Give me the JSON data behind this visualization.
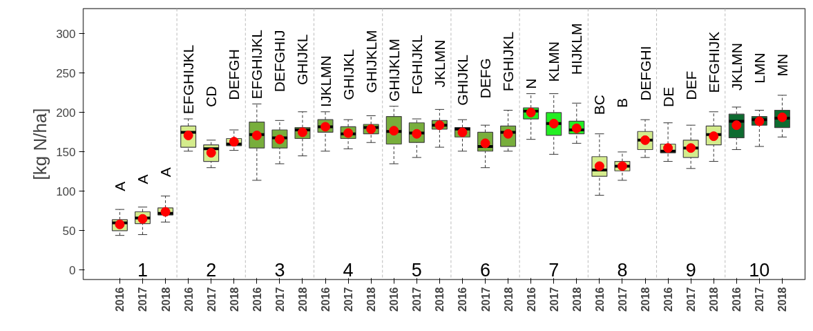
{
  "chart_data": {
    "type": "box",
    "ylabel": "[kg N/ha]",
    "categories": [
      "2016",
      "2017",
      "2018",
      "2016",
      "2017",
      "2018",
      "2016",
      "2017",
      "2018",
      "2016",
      "2017",
      "2018",
      "2016",
      "2017",
      "2018",
      "2016",
      "2017",
      "2018",
      "2016",
      "2017",
      "2018",
      "2016",
      "2017",
      "2018",
      "2016",
      "2017",
      "2018",
      "2016",
      "2017",
      "2018"
    ],
    "colors": [
      "#d4ec8c",
      "#d4ec8c",
      "#d4ec8c",
      "#d4ec8c",
      "#d4ec8c",
      "#d4ec8c",
      "#78ae3c",
      "#78ae3c",
      "#78ae3c",
      "#78ae3c",
      "#78ae3c",
      "#78ae3c",
      "#78ae3c",
      "#78ae3c",
      "#78ae3c",
      "#78ae3c",
      "#78ae3c",
      "#78ae3c",
      "#22ee22",
      "#22ee22",
      "#22ee22",
      "#d4ec8c",
      "#d4ec8c",
      "#d4ec8c",
      "#d4ec8c",
      "#d4ec8c",
      "#d4ec8c",
      "#0e6b30",
      "#0e6b30",
      "#0e6b30"
    ],
    "boxes": [
      {
        "low": 44,
        "q1": 50,
        "median": 60,
        "q3": 64,
        "high": 77,
        "mean": 58
      },
      {
        "low": 45,
        "q1": 59,
        "median": 66,
        "q3": 74,
        "high": 80,
        "mean": 65
      },
      {
        "low": 61,
        "q1": 70,
        "median": 72,
        "q3": 79,
        "high": 94,
        "mean": 74
      },
      {
        "low": 151,
        "q1": 156,
        "median": 175,
        "q3": 183,
        "high": 192,
        "mean": 171
      },
      {
        "low": 130,
        "q1": 138,
        "median": 154,
        "q3": 159,
        "high": 165,
        "mean": 149
      },
      {
        "low": 152,
        "q1": 158,
        "median": 160,
        "q3": 167,
        "high": 178,
        "mean": 163
      },
      {
        "low": 114,
        "q1": 155,
        "median": 172,
        "q3": 188,
        "high": 211,
        "mean": 171
      },
      {
        "low": 135,
        "q1": 155,
        "median": 168,
        "q3": 178,
        "high": 190,
        "mean": 166
      },
      {
        "low": 145,
        "q1": 167,
        "median": 178,
        "q3": 181,
        "high": 201,
        "mean": 175
      },
      {
        "low": 151,
        "q1": 175,
        "median": 182,
        "q3": 191,
        "high": 201,
        "mean": 182
      },
      {
        "low": 154,
        "q1": 167,
        "median": 173,
        "q3": 182,
        "high": 191,
        "mean": 174
      },
      {
        "low": 162,
        "q1": 173,
        "median": 181,
        "q3": 185,
        "high": 196,
        "mean": 179
      },
      {
        "low": 135,
        "q1": 160,
        "median": 176,
        "q3": 195,
        "high": 208,
        "mean": 177
      },
      {
        "low": 143,
        "q1": 162,
        "median": 174,
        "q3": 187,
        "high": 192,
        "mean": 173
      },
      {
        "low": 156,
        "q1": 179,
        "median": 184,
        "q3": 190,
        "high": 204,
        "mean": 184
      },
      {
        "low": 151,
        "q1": 169,
        "median": 179,
        "q3": 181,
        "high": 191,
        "mean": 175
      },
      {
        "low": 130,
        "q1": 151,
        "median": 157,
        "q3": 175,
        "high": 184,
        "mean": 161
      },
      {
        "low": 151,
        "q1": 157,
        "median": 175,
        "q3": 183,
        "high": 203,
        "mean": 173
      },
      {
        "low": 166,
        "q1": 192,
        "median": 202,
        "q3": 206,
        "high": 224,
        "mean": 200
      },
      {
        "low": 147,
        "q1": 171,
        "median": 186,
        "q3": 200,
        "high": 224,
        "mean": 186
      },
      {
        "low": 161,
        "q1": 173,
        "median": 178,
        "q3": 189,
        "high": 212,
        "mean": 180
      },
      {
        "low": 95,
        "q1": 119,
        "median": 127,
        "q3": 144,
        "high": 173,
        "mean": 132
      },
      {
        "low": 114,
        "q1": 126,
        "median": 132,
        "q3": 138,
        "high": 150,
        "mean": 132
      },
      {
        "low": 143,
        "q1": 153,
        "median": 165,
        "q3": 176,
        "high": 191,
        "mean": 165
      },
      {
        "low": 138,
        "q1": 149,
        "median": 151,
        "q3": 160,
        "high": 187,
        "mean": 155
      },
      {
        "low": 129,
        "q1": 143,
        "median": 155,
        "q3": 165,
        "high": 184,
        "mean": 155
      },
      {
        "low": 138,
        "q1": 159,
        "median": 172,
        "q3": 183,
        "high": 201,
        "mean": 170
      },
      {
        "low": 153,
        "q1": 168,
        "median": 189,
        "q3": 198,
        "high": 207,
        "mean": 184
      },
      {
        "low": 157,
        "q1": 184,
        "median": 191,
        "q3": 195,
        "high": 203,
        "mean": 189
      },
      {
        "low": 169,
        "q1": 181,
        "median": 193,
        "q3": 203,
        "high": 222,
        "mean": 194
      }
    ],
    "annotations": [
      "1",
      "2",
      "3",
      "4",
      "5",
      "6",
      "7",
      "8",
      "9",
      "10",
      "A",
      "A",
      "A",
      "EFGHIJKL",
      "CD",
      "DEFGH",
      "EFGHIJKL",
      "DEFGHIJ",
      "GHIJKL",
      "IJKLMN",
      "GHIJKL",
      "GHIJKLM",
      "GHIJKLM",
      "FGHIJKL",
      "JKLMN",
      "GHIJKL",
      "DEFG",
      "FGHIJKL",
      "N",
      "KLMN",
      "HIJKLM",
      "BC",
      "B",
      "DEFGHI",
      "DE",
      "DEF",
      "EFGHIJK",
      "JKLMN",
      "LMN",
      "MN"
    ],
    "ylim": [
      -12,
      332
    ],
    "yticks": [
      0,
      50,
      100,
      150,
      200,
      250,
      300
    ]
  }
}
